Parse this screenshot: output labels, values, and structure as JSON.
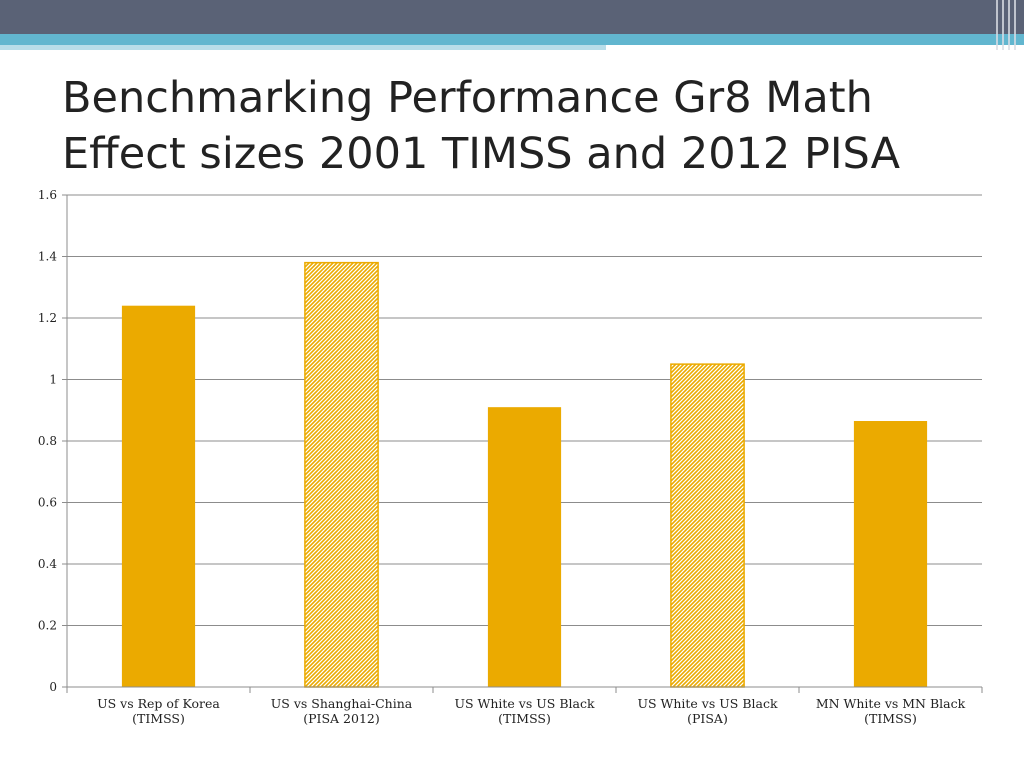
{
  "title": {
    "line1": "Benchmarking Performance Gr8 Math",
    "line2": "Effect sizes 2001 TIMSS and 2012 PISA"
  },
  "colors": {
    "bar": "#EBAA00",
    "header_dark": "#5A6276",
    "header_accent": "#62B6CF"
  },
  "chart_data": {
    "type": "bar",
    "categories": [
      "US vs Rep of Korea (TIMSS)",
      "US vs Shanghai-China (PISA 2012)",
      "US White vs US Black (TIMSS)",
      "US White vs US Black (PISA)",
      "MN White vs MN Black (TIMSS)"
    ],
    "values": [
      1.24,
      1.38,
      0.91,
      1.05,
      0.865
    ],
    "fill_styles": [
      "solid",
      "hatched",
      "solid",
      "hatched",
      "solid"
    ],
    "ylim": [
      0,
      1.6
    ],
    "yticks": [
      0,
      0.2,
      0.4,
      0.6,
      0.8,
      1,
      1.2,
      1.4,
      1.6
    ],
    "ytick_labels": [
      "0",
      "0.2",
      "0.4",
      "0.6",
      "0.8",
      "1",
      "1.2",
      "1.4",
      "1.6"
    ],
    "grid": true,
    "xlabel": "",
    "ylabel": ""
  }
}
